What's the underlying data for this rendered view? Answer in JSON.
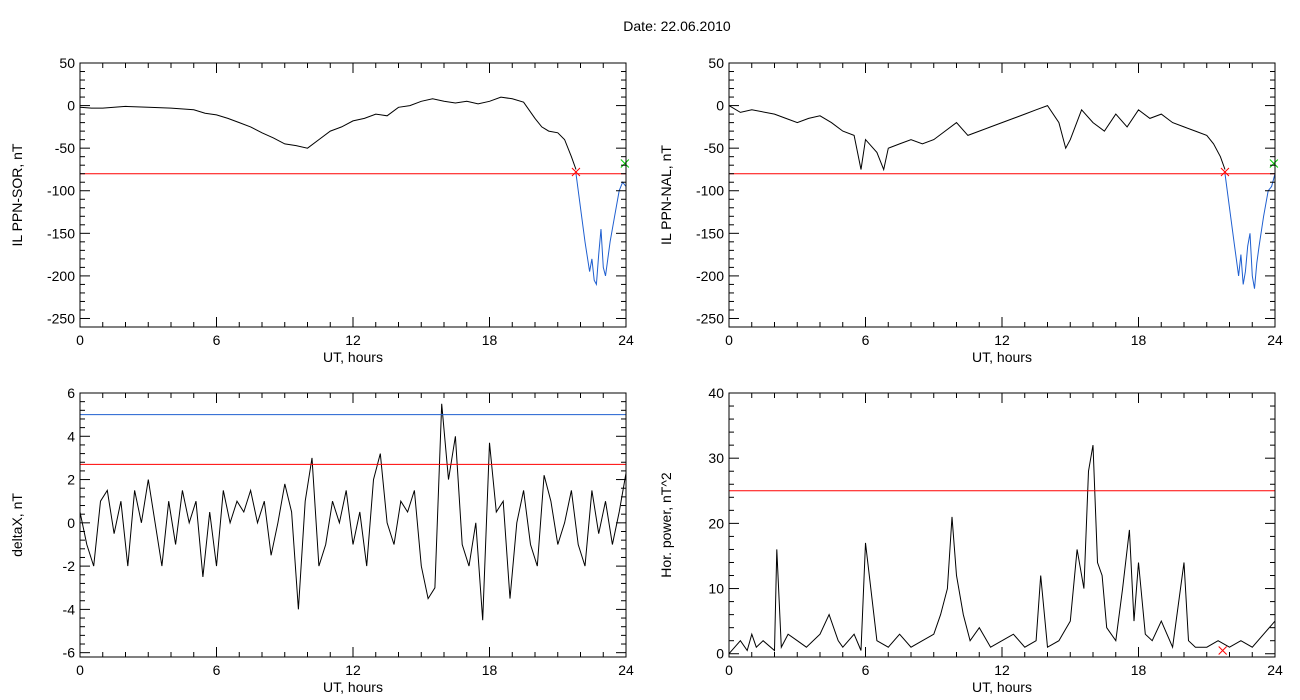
{
  "header": {
    "date_label": "Date:  22.06.2010"
  },
  "chart_data": [
    {
      "type": "line",
      "ylabel": "IL PPN-SOR, nT",
      "xlabel": "UT, hours",
      "xlim": [
        0,
        24
      ],
      "ylim": [
        -260,
        50
      ],
      "xticks": [
        0,
        6,
        12,
        18,
        24
      ],
      "yticks": [
        50,
        0,
        -50,
        -100,
        -150,
        -200,
        -250
      ],
      "grid": false,
      "series": [
        {
          "color": "#000000",
          "x": [
            0,
            0.5,
            1,
            2,
            3,
            4,
            5,
            5.5,
            6,
            6.5,
            7,
            7.5,
            8,
            8.5,
            9,
            9.5,
            10,
            10.5,
            11,
            11.5,
            12,
            12.5,
            13,
            13.5,
            14,
            14.5,
            15,
            15.5,
            16,
            16.5,
            17,
            17.5,
            18,
            18.5,
            19,
            19.5,
            20,
            20.3,
            20.6,
            21,
            21.3,
            21.6,
            21.8
          ],
          "y": [
            -2,
            -3,
            -3,
            -1,
            -2,
            -3,
            -5,
            -9,
            -11,
            -15,
            -20,
            -25,
            -32,
            -38,
            -45,
            -47,
            -50,
            -40,
            -30,
            -25,
            -18,
            -15,
            -10,
            -12,
            -2,
            0,
            5,
            8,
            5,
            3,
            5,
            2,
            5,
            10,
            8,
            4,
            -15,
            -25,
            -30,
            -32,
            -40,
            -60,
            -75
          ]
        },
        {
          "color": "#1f5fd0",
          "x": [
            21.8,
            22,
            22.2,
            22.4,
            22.5,
            22.6,
            22.7,
            22.8,
            22.9,
            23,
            23.1,
            23.2,
            23.3,
            23.5,
            23.7,
            23.85,
            24
          ],
          "y": [
            -80,
            -120,
            -160,
            -195,
            -180,
            -205,
            -210,
            -175,
            -145,
            -190,
            -200,
            -180,
            -160,
            -130,
            -100,
            -90,
            -95
          ]
        }
      ],
      "thresholds": [
        {
          "y": -80,
          "color": "#ff0000"
        }
      ],
      "markers": [
        {
          "x": 21.8,
          "y": -78,
          "color": "#ff0000",
          "symbol": "x"
        },
        {
          "x": 23.95,
          "y": -68,
          "color": "#00cc00",
          "symbol": "x"
        }
      ]
    },
    {
      "type": "line",
      "ylabel": "IL PPN-NAL, nT",
      "xlabel": "UT, hours",
      "xlim": [
        0,
        24
      ],
      "ylim": [
        -260,
        50
      ],
      "xticks": [
        0,
        6,
        12,
        18,
        24
      ],
      "yticks": [
        50,
        0,
        -50,
        -100,
        -150,
        -200,
        -250
      ],
      "grid": false,
      "series": [
        {
          "color": "#000000",
          "x": [
            0,
            0.5,
            1,
            2,
            2.5,
            3,
            3.5,
            4,
            4.5,
            5,
            5.5,
            5.8,
            6,
            6.5,
            6.8,
            7,
            7.5,
            8,
            8.5,
            9,
            9.5,
            10,
            10.5,
            11,
            11.5,
            12,
            12.5,
            13,
            13.5,
            14,
            14.5,
            14.8,
            15,
            15.5,
            16,
            16.5,
            17,
            17.5,
            18,
            18.5,
            19,
            19.5,
            20,
            20.5,
            21,
            21.3,
            21.6,
            21.8
          ],
          "y": [
            0,
            -8,
            -5,
            -10,
            -15,
            -20,
            -15,
            -12,
            -20,
            -30,
            -35,
            -75,
            -40,
            -55,
            -75,
            -50,
            -45,
            -40,
            -45,
            -40,
            -30,
            -20,
            -35,
            -30,
            -25,
            -20,
            -15,
            -10,
            -5,
            0,
            -20,
            -50,
            -40,
            -5,
            -20,
            -30,
            -10,
            -25,
            -5,
            -15,
            -10,
            -20,
            -25,
            -30,
            -35,
            -45,
            -60,
            -75
          ]
        },
        {
          "color": "#1f5fd0",
          "x": [
            21.8,
            22,
            22.2,
            22.4,
            22.5,
            22.6,
            22.7,
            22.8,
            22.9,
            23,
            23.1,
            23.2,
            23.3,
            23.5,
            23.7,
            23.85,
            24
          ],
          "y": [
            -80,
            -120,
            -160,
            -200,
            -175,
            -210,
            -195,
            -165,
            -150,
            -200,
            -215,
            -185,
            -165,
            -130,
            -100,
            -95,
            -80
          ]
        }
      ],
      "thresholds": [
        {
          "y": -80,
          "color": "#ff0000"
        }
      ],
      "markers": [
        {
          "x": 21.8,
          "y": -78,
          "color": "#ff0000",
          "symbol": "x"
        },
        {
          "x": 23.95,
          "y": -68,
          "color": "#00cc00",
          "symbol": "x"
        }
      ]
    },
    {
      "type": "line",
      "ylabel": "deltaX, nT",
      "xlabel": "UT, hours",
      "xlim": [
        0,
        24
      ],
      "ylim": [
        -6.2,
        6
      ],
      "xticks": [
        0,
        6,
        12,
        18,
        24
      ],
      "yticks": [
        6,
        4,
        2,
        0,
        -2,
        -4,
        -6
      ],
      "grid": false,
      "series": [
        {
          "color": "#000000",
          "x": [
            0,
            0.3,
            0.6,
            0.9,
            1.2,
            1.5,
            1.8,
            2.1,
            2.4,
            2.7,
            3,
            3.3,
            3.6,
            3.9,
            4.2,
            4.5,
            4.8,
            5.1,
            5.4,
            5.7,
            6,
            6.3,
            6.6,
            6.9,
            7.2,
            7.5,
            7.8,
            8.1,
            8.4,
            8.7,
            9,
            9.3,
            9.6,
            9.9,
            10.2,
            10.5,
            10.8,
            11.1,
            11.4,
            11.7,
            12,
            12.3,
            12.6,
            12.9,
            13.2,
            13.5,
            13.8,
            14.1,
            14.4,
            14.7,
            15,
            15.3,
            15.6,
            15.9,
            16.2,
            16.5,
            16.8,
            17.1,
            17.4,
            17.7,
            18,
            18.3,
            18.6,
            18.9,
            19.2,
            19.5,
            19.8,
            20.1,
            20.4,
            20.7,
            21,
            21.3,
            21.6,
            21.9,
            22.2,
            22.5,
            22.8,
            23.1,
            23.4,
            23.7,
            24
          ],
          "y": [
            0.5,
            -1,
            -2,
            1,
            1.5,
            -0.5,
            1,
            -2,
            1.5,
            0,
            2,
            0,
            -2,
            1,
            -1,
            1.5,
            0,
            1,
            -2.5,
            0.5,
            -2,
            1.5,
            0,
            1,
            0.5,
            1.5,
            0,
            1,
            -1.5,
            0,
            1.8,
            0.5,
            -4,
            1,
            3,
            -2,
            -1,
            1,
            0,
            1.5,
            -1,
            0.5,
            -2,
            2,
            3.2,
            0,
            -1,
            1,
            0.5,
            1.5,
            -2,
            -3.5,
            -3,
            5.5,
            2,
            4,
            -1,
            -2,
            0,
            -4.5,
            3.7,
            0.5,
            1,
            -3.5,
            0,
            1.5,
            -1,
            -2,
            2.2,
            1,
            -1,
            0,
            1.5,
            -1,
            -2,
            1.5,
            -0.5,
            1,
            -1,
            0.5,
            2.3
          ]
        }
      ],
      "thresholds": [
        {
          "y": 5,
          "color": "#1f5fd0"
        },
        {
          "y": 2.7,
          "color": "#ff0000"
        }
      ],
      "markers": []
    },
    {
      "type": "line",
      "ylabel": "Hor. power, nT^2",
      "xlabel": "UT, hours",
      "xlim": [
        0,
        24
      ],
      "ylim": [
        -0.5,
        40
      ],
      "xticks": [
        0,
        6,
        12,
        18,
        24
      ],
      "yticks": [
        0,
        10,
        20,
        30,
        40
      ],
      "grid": false,
      "series": [
        {
          "color": "#000000",
          "x": [
            0,
            0.5,
            0.8,
            1,
            1.2,
            1.5,
            2,
            2.1,
            2.3,
            2.6,
            3,
            3.4,
            4,
            4.4,
            4.8,
            5,
            5.5,
            5.8,
            6,
            6.5,
            7,
            7.5,
            8,
            8.5,
            9,
            9.3,
            9.6,
            9.8,
            10,
            10.3,
            10.6,
            11,
            11.5,
            12,
            12.5,
            13,
            13.5,
            13.7,
            14,
            14.5,
            15,
            15.3,
            15.6,
            15.8,
            16,
            16.2,
            16.4,
            16.6,
            17,
            17.3,
            17.6,
            17.8,
            18,
            18.3,
            18.6,
            19,
            19.5,
            20,
            20.2,
            20.5,
            21,
            21.5,
            22,
            22.5,
            23,
            23.5,
            24
          ],
          "y": [
            0,
            2,
            0.5,
            3,
            1,
            2,
            0.5,
            16,
            1,
            3,
            2,
            1,
            3,
            6,
            2,
            1,
            3,
            0.5,
            17,
            2,
            1,
            3,
            1,
            2,
            3,
            6,
            10,
            21,
            12,
            6,
            2,
            4,
            1,
            2,
            3,
            1,
            2,
            12,
            1,
            2,
            5,
            16,
            10,
            28,
            32,
            14,
            12,
            4,
            2,
            10,
            19,
            5,
            14,
            3,
            2,
            5,
            1,
            14,
            2,
            1,
            1,
            2,
            1,
            2,
            1,
            3,
            5
          ]
        }
      ],
      "thresholds": [
        {
          "y": 25,
          "color": "#ff0000"
        }
      ],
      "markers": [
        {
          "x": 21.7,
          "y": 0.5,
          "color": "#ff0000",
          "symbol": "x"
        }
      ]
    }
  ]
}
